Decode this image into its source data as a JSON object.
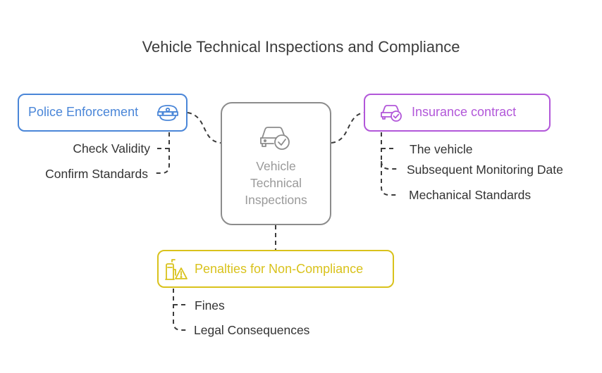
{
  "title": "Vehicle Technical Inspections and Compliance",
  "colors": {
    "police": "#4a86d8",
    "insurance": "#b257d9",
    "penalties": "#d9c21c",
    "center": "#8c8c8c",
    "connector": "#3c3c3c"
  },
  "center": {
    "lines": [
      "Vehicle",
      "Technical",
      "Inspections"
    ],
    "icon": "car-check-icon"
  },
  "branches": {
    "police": {
      "label": "Police Enforcement",
      "icon": "police-cap-icon",
      "items": [
        "Check Validity",
        "Confirm Standards"
      ]
    },
    "insurance": {
      "label": "Insurance contract",
      "icon": "car-check-icon",
      "items": [
        "The vehicle",
        "Subsequent Monitoring Date",
        "Mechanical Standards"
      ]
    },
    "penalties": {
      "label": "Penalties for Non-Compliance",
      "icon": "fuel-warning-icon",
      "items": [
        "Fines",
        "Legal Consequences"
      ]
    }
  }
}
